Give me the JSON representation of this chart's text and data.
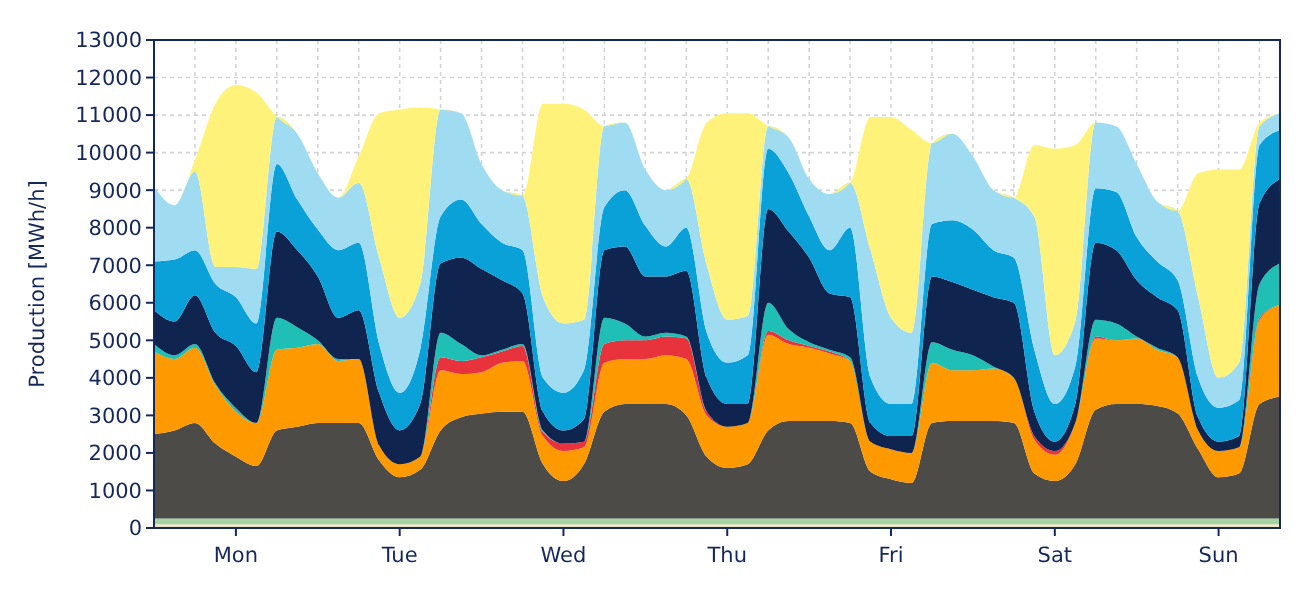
{
  "chart_data": {
    "type": "area",
    "stacked": true,
    "ylabel": "Production [MWh/h]",
    "categories": [
      null,
      null,
      null,
      null,
      "Mon",
      null,
      null,
      null,
      null,
      null,
      null,
      null,
      "Tue",
      null,
      null,
      null,
      null,
      null,
      null,
      null,
      "Wed",
      null,
      null,
      null,
      null,
      null,
      null,
      null,
      "Thu",
      null,
      null,
      null,
      null,
      null,
      null,
      null,
      "Fri",
      null,
      null,
      null,
      null,
      null,
      null,
      null,
      "Sat",
      null,
      null,
      null,
      null,
      null,
      null,
      null,
      "Sun",
      null,
      null,
      null
    ],
    "ylim": [
      0,
      13000
    ],
    "yticks": [
      0,
      1000,
      2000,
      3000,
      4000,
      5000,
      6000,
      7000,
      8000,
      9000,
      10000,
      11000,
      12000,
      13000
    ],
    "grid": true,
    "series": [
      {
        "color": "#efe4c8",
        "values": [
          100,
          100,
          100,
          100,
          100,
          100,
          100,
          100,
          100,
          100,
          100,
          100,
          100,
          100,
          100,
          100,
          100,
          100,
          100,
          100,
          100,
          100,
          100,
          100,
          100,
          100,
          100,
          100,
          100,
          100,
          100,
          100,
          100,
          100,
          100,
          100,
          100,
          100,
          100,
          100,
          100,
          100,
          100,
          100,
          100,
          100,
          100,
          100,
          100,
          100,
          100,
          100,
          100,
          100,
          100,
          100
        ]
      },
      {
        "color": "#a3d3a0",
        "values": [
          150,
          150,
          150,
          150,
          150,
          150,
          150,
          150,
          150,
          150,
          150,
          150,
          150,
          150,
          150,
          150,
          150,
          150,
          150,
          150,
          150,
          150,
          150,
          150,
          150,
          150,
          150,
          150,
          150,
          150,
          150,
          150,
          150,
          150,
          150,
          150,
          150,
          150,
          150,
          150,
          150,
          150,
          150,
          150,
          150,
          150,
          150,
          150,
          150,
          150,
          150,
          150,
          150,
          150,
          150,
          150
        ]
      },
      {
        "color": "#4d4b47",
        "values": [
          2250,
          2350,
          2550,
          2000,
          1650,
          1400,
          2350,
          2450,
          2550,
          2550,
          2550,
          1550,
          1100,
          1300,
          2350,
          2700,
          2800,
          2850,
          2850,
          1450,
          1000,
          1450,
          2850,
          3050,
          3050,
          3050,
          2750,
          1650,
          1350,
          1450,
          2350,
          2600,
          2600,
          2600,
          2550,
          1250,
          1050,
          950,
          2550,
          2600,
          2600,
          2600,
          2550,
          1200,
          1000,
          1450,
          2900,
          3050,
          3050,
          3000,
          2800,
          1850,
          1100,
          1200,
          3050,
          3250
        ]
      },
      {
        "color": "#ff9900",
        "values": [
          2200,
          1900,
          2000,
          1550,
          1200,
          1150,
          2150,
          2100,
          2100,
          1650,
          1700,
          400,
          350,
          350,
          1600,
          1150,
          1100,
          1300,
          1350,
          750,
          800,
          450,
          1300,
          1200,
          1200,
          1300,
          1500,
          1100,
          1100,
          1100,
          2550,
          2050,
          1950,
          1800,
          1650,
          800,
          800,
          800,
          1600,
          1350,
          1350,
          1400,
          1200,
          900,
          700,
          1100,
          1900,
          1700,
          1750,
          1500,
          1500,
          500,
          700,
          700,
          2250,
          2450
        ]
      },
      {
        "color": "#e8323c",
        "values": [
          0,
          0,
          0,
          0,
          0,
          0,
          0,
          0,
          0,
          0,
          0,
          0,
          0,
          0,
          350,
          350,
          400,
          300,
          400,
          100,
          200,
          150,
          500,
          500,
          500,
          500,
          550,
          100,
          0,
          0,
          100,
          100,
          50,
          50,
          0,
          0,
          0,
          0,
          0,
          0,
          0,
          0,
          0,
          100,
          100,
          0,
          50,
          0,
          0,
          0,
          0,
          0,
          0,
          0,
          50,
          0
        ]
      },
      {
        "color": "#1fbfb5",
        "values": [
          200,
          100,
          100,
          50,
          100,
          0,
          850,
          550,
          100,
          50,
          0,
          0,
          0,
          0,
          650,
          450,
          50,
          50,
          50,
          50,
          0,
          0,
          700,
          450,
          100,
          100,
          50,
          0,
          0,
          0,
          750,
          300,
          100,
          50,
          100,
          0,
          0,
          0,
          550,
          550,
          400,
          50,
          0,
          0,
          0,
          0,
          450,
          450,
          50,
          50,
          0,
          0,
          0,
          0,
          900,
          1100
        ]
      },
      {
        "color": "#102450",
        "values": [
          900,
          900,
          1300,
          1350,
          1650,
          1350,
          2300,
          2050,
          1700,
          1100,
          1300,
          1400,
          900,
          1400,
          1850,
          2300,
          2300,
          1850,
          1350,
          500,
          350,
          600,
          1800,
          2050,
          1600,
          1500,
          1750,
          900,
          600,
          500,
          2500,
          2600,
          2250,
          1500,
          1600,
          500,
          350,
          450,
          1750,
          1800,
          1750,
          1850,
          2000,
          650,
          250,
          500,
          2050,
          1950,
          1500,
          1350,
          1250,
          350,
          250,
          300,
          2150,
          2250
        ]
      },
      {
        "color": "#0aa0d8",
        "values": [
          1300,
          1650,
          1200,
          1300,
          1300,
          1300,
          1800,
          1350,
          1250,
          1800,
          1800,
          1300,
          1000,
          1450,
          1250,
          1550,
          1200,
          1000,
          1150,
          900,
          1000,
          1300,
          1150,
          1500,
          1350,
          800,
          1150,
          1200,
          1100,
          1300,
          1600,
          1550,
          1100,
          1150,
          1850,
          1200,
          850,
          850,
          1400,
          1650,
          1600,
          1250,
          1200,
          1650,
          1000,
          1000,
          1450,
          1550,
          1150,
          950,
          800,
          1050,
          900,
          950,
          1550,
          1300
        ]
      },
      {
        "color": "#9fdcf2",
        "values": [
          2000,
          1450,
          2100,
          450,
          800,
          1450,
          1250,
          1750,
          1500,
          1400,
          1600,
          2300,
          2000,
          1750,
          2850,
          2300,
          1600,
          1400,
          1450,
          2150,
          1850,
          1350,
          2150,
          1800,
          1500,
          1500,
          1300,
          1800,
          1150,
          1050,
          600,
          950,
          1000,
          1500,
          1200,
          3400,
          2300,
          1900,
          2150,
          2300,
          1950,
          1600,
          1600,
          3550,
          1300,
          1200,
          1750,
          1750,
          1950,
          1600,
          1850,
          2150,
          800,
          1000,
          500,
          450
        ]
      },
      {
        "color": "#fff27a",
        "values": [
          0,
          0,
          300,
          4350,
          4850,
          4700,
          0,
          0,
          0,
          0,
          700,
          3850,
          5550,
          4700,
          0,
          0,
          0,
          0,
          0,
          5150,
          5850,
          5600,
          0,
          0,
          0,
          0,
          0,
          3800,
          5500,
          5400,
          0,
          0,
          0,
          0,
          0,
          3550,
          5350,
          5400,
          0,
          0,
          0,
          0,
          0,
          1900,
          5500,
          4700,
          0,
          0,
          0,
          0,
          0,
          3300,
          5550,
          5150,
          100,
          0
        ]
      }
    ]
  }
}
